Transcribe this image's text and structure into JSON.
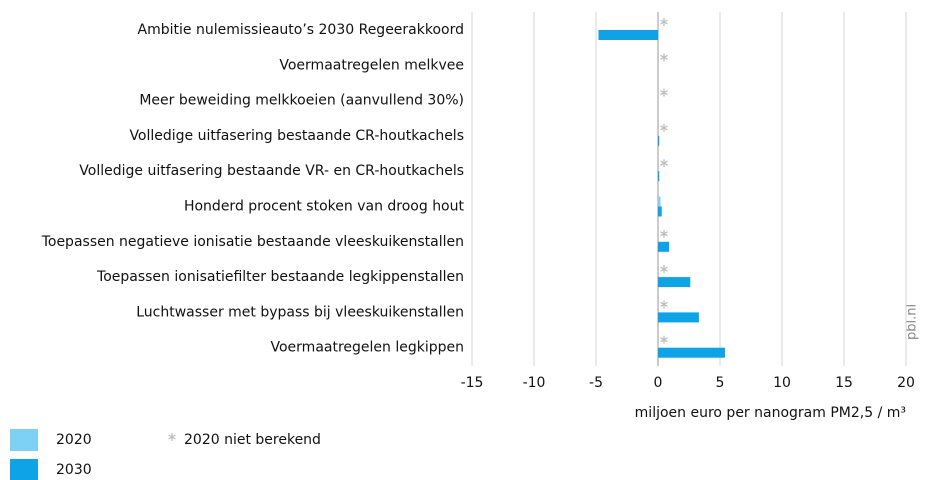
{
  "chart_data": {
    "type": "hbar",
    "categories": [
      "Ambitie nulemissieauto’s 2030 Regeerakkoord",
      "Voermaatregelen melkvee",
      "Meer beweiding melkkoeien (aanvullend 30%)",
      "Volledige uitfasering bestaande CR-houtkachels",
      "Volledige uitfasering bestaande VR- en CR-houtkachels",
      "Honderd procent stoken van droog hout",
      "Toepassen negatieve ionisatie bestaande vleeskuikenstallen",
      "Toepassen ionisatiefilter bestaande legkippenstallen",
      "Luchtwasser met bypass bij vleeskuikenstallen",
      "Voermaatregelen legkippen"
    ],
    "series": [
      {
        "name": "2020",
        "color": "#7fd0f5",
        "values": [
          null,
          null,
          null,
          null,
          null,
          0.2,
          null,
          null,
          null,
          null
        ]
      },
      {
        "name": "2030",
        "color": "#0ea2e6",
        "values": [
          -4.8,
          0,
          0,
          0.1,
          0.1,
          0.3,
          0.9,
          2.6,
          3.3,
          5.4
        ]
      }
    ],
    "null_legend": "2020 niet berekend",
    "xlabel": "miljoen euro per nanogram PM2,5 / m³",
    "xlim": [
      -15,
      20
    ],
    "xticks": [
      -15,
      -10,
      -5,
      0,
      5,
      10,
      15,
      20
    ],
    "grid": true,
    "source": "pbl.nl"
  }
}
